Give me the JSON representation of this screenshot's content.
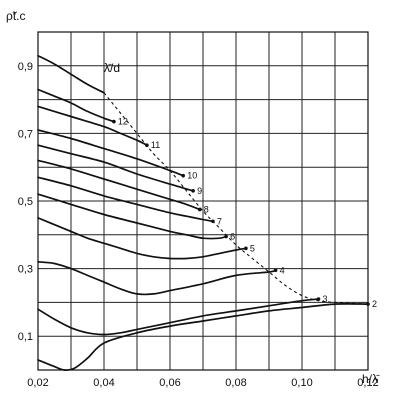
{
  "chart_data": {
    "type": "line",
    "title": "",
    "ylabel": "ρ̃t.c",
    "xlabel": "h/λ̄",
    "envelope_label": "λ̄/d",
    "xlim": [
      0.02,
      0.12
    ],
    "ylim": [
      0,
      1.0
    ],
    "x_ticks": [
      0.02,
      0.04,
      0.06,
      0.08,
      0.1,
      0.12
    ],
    "x_tick_labels": [
      "0,02",
      "0,04",
      "0,06",
      "0,08",
      "0,10",
      "0,12"
    ],
    "y_ticks": [
      0.1,
      0.3,
      0.5,
      0.7,
      0.9
    ],
    "y_tick_labels": [
      "0,1",
      "0,3",
      "0,5",
      "0,7",
      "0,9"
    ],
    "grid": true,
    "series": [
      {
        "label": "2",
        "x": [
          0.02,
          0.025,
          0.028,
          0.031,
          0.035,
          0.04,
          0.05,
          0.06,
          0.07,
          0.08,
          0.09,
          0.1,
          0.11,
          0.12
        ],
        "y": [
          0.03,
          0.01,
          0.0,
          0.005,
          0.035,
          0.08,
          0.11,
          0.13,
          0.145,
          0.16,
          0.175,
          0.185,
          0.195,
          0.195
        ]
      },
      {
        "label": "3",
        "x": [
          0.02,
          0.025,
          0.03,
          0.035,
          0.04,
          0.045,
          0.05,
          0.06,
          0.07,
          0.08,
          0.09,
          0.1,
          0.105
        ],
        "y": [
          0.18,
          0.15,
          0.125,
          0.11,
          0.105,
          0.11,
          0.12,
          0.14,
          0.16,
          0.175,
          0.19,
          0.205,
          0.21
        ]
      },
      {
        "label": "4",
        "x": [
          0.02,
          0.025,
          0.03,
          0.035,
          0.04,
          0.045,
          0.05,
          0.055,
          0.06,
          0.07,
          0.08,
          0.09,
          0.092
        ],
        "y": [
          0.32,
          0.315,
          0.3,
          0.28,
          0.26,
          0.24,
          0.225,
          0.225,
          0.235,
          0.255,
          0.28,
          0.29,
          0.295
        ]
      },
      {
        "label": "5",
        "x": [
          0.02,
          0.025,
          0.03,
          0.035,
          0.04,
          0.045,
          0.05,
          0.055,
          0.06,
          0.065,
          0.07,
          0.075,
          0.08,
          0.083
        ],
        "y": [
          0.45,
          0.43,
          0.41,
          0.39,
          0.375,
          0.36,
          0.345,
          0.335,
          0.33,
          0.33,
          0.335,
          0.345,
          0.355,
          0.36
        ]
      },
      {
        "label": "6",
        "x": [
          0.02,
          0.03,
          0.04,
          0.05,
          0.06,
          0.065,
          0.07,
          0.075,
          0.077
        ],
        "y": [
          0.52,
          0.49,
          0.46,
          0.435,
          0.41,
          0.4,
          0.39,
          0.39,
          0.395
        ]
      },
      {
        "label": "7",
        "x": [
          0.02,
          0.03,
          0.04,
          0.05,
          0.06,
          0.065,
          0.07,
          0.073
        ],
        "y": [
          0.57,
          0.545,
          0.515,
          0.49,
          0.465,
          0.455,
          0.445,
          0.44
        ]
      },
      {
        "label": "8",
        "x": [
          0.02,
          0.03,
          0.04,
          0.05,
          0.06,
          0.065,
          0.069
        ],
        "y": [
          0.62,
          0.595,
          0.565,
          0.535,
          0.505,
          0.49,
          0.475
        ]
      },
      {
        "label": "9",
        "x": [
          0.02,
          0.03,
          0.04,
          0.05,
          0.06,
          0.067
        ],
        "y": [
          0.665,
          0.64,
          0.615,
          0.58,
          0.55,
          0.53
        ]
      },
      {
        "label": "10",
        "x": [
          0.02,
          0.03,
          0.04,
          0.05,
          0.06,
          0.064
        ],
        "y": [
          0.71,
          0.685,
          0.655,
          0.625,
          0.59,
          0.575
        ]
      },
      {
        "label": "11",
        "x": [
          0.02,
          0.03,
          0.04,
          0.045,
          0.05,
          0.053
        ],
        "y": [
          0.78,
          0.75,
          0.72,
          0.7,
          0.68,
          0.665
        ]
      },
      {
        "label": "12",
        "x": [
          0.02,
          0.025,
          0.03,
          0.035,
          0.04,
          0.043
        ],
        "y": [
          0.83,
          0.81,
          0.79,
          0.765,
          0.745,
          0.735
        ]
      },
      {
        "label": "",
        "x": [
          0.02,
          0.025,
          0.03,
          0.035,
          0.04
        ],
        "y": [
          0.93,
          0.905,
          0.875,
          0.845,
          0.82
        ]
      }
    ],
    "envelope": {
      "x": [
        0.04,
        0.045,
        0.05,
        0.055,
        0.06,
        0.065,
        0.07,
        0.075,
        0.08,
        0.085,
        0.09,
        0.095,
        0.1,
        0.105,
        0.11,
        0.12
      ],
      "y": [
        0.82,
        0.76,
        0.7,
        0.64,
        0.59,
        0.53,
        0.47,
        0.42,
        0.37,
        0.33,
        0.29,
        0.25,
        0.22,
        0.205,
        0.2,
        0.195
      ]
    }
  }
}
